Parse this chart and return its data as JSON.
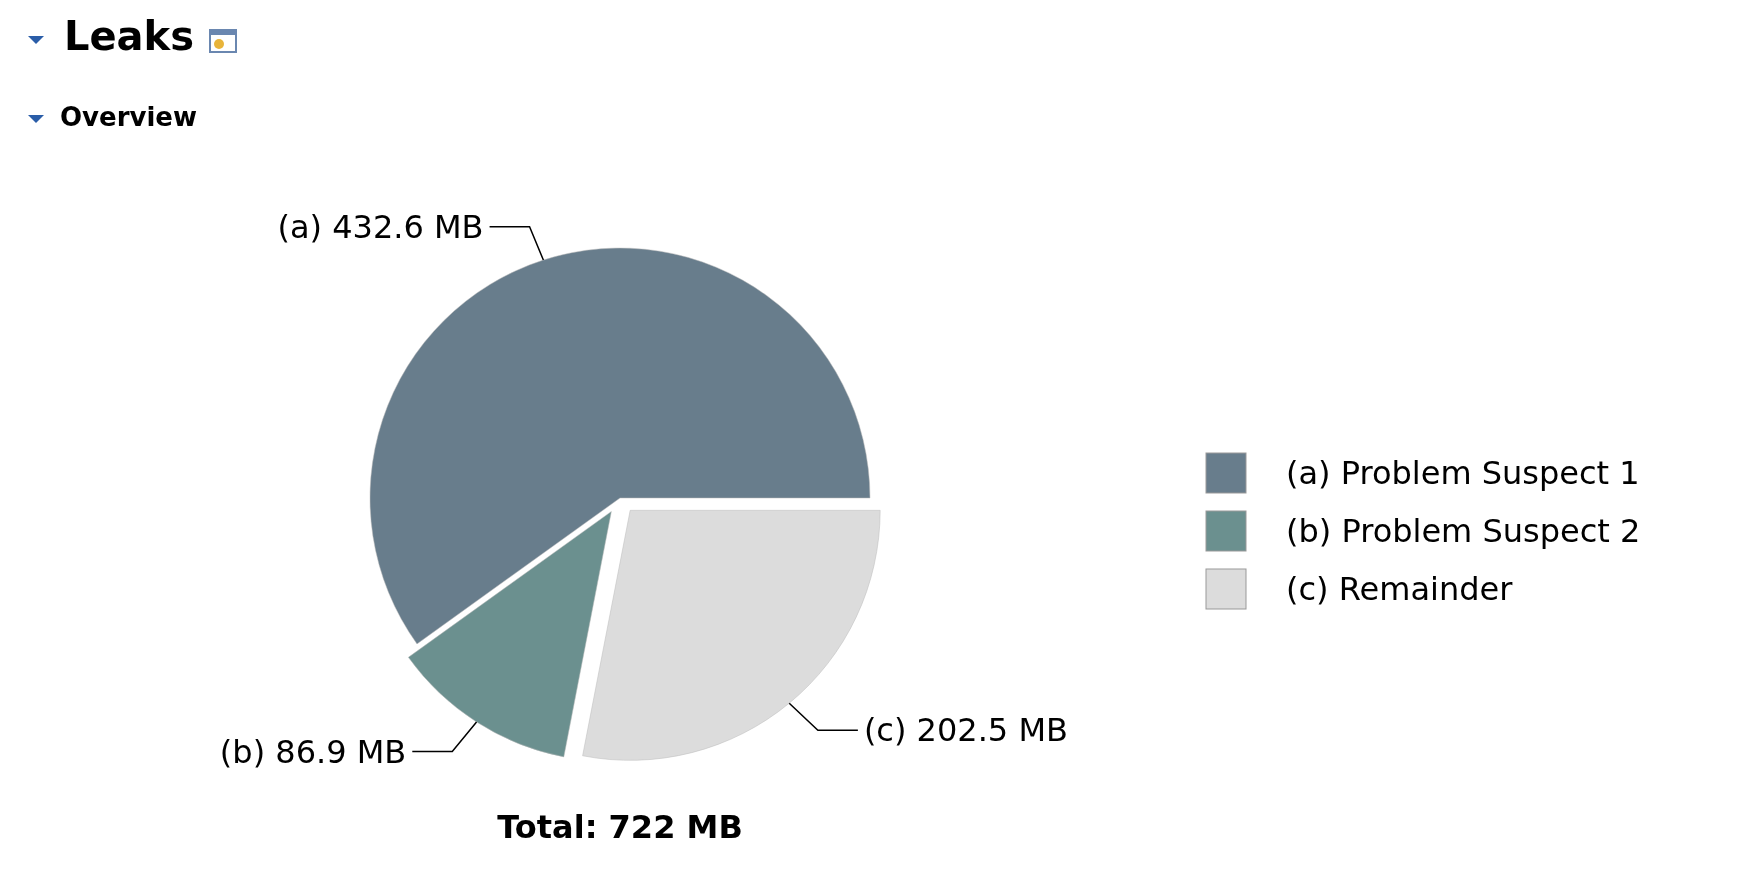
{
  "chart_data": {
    "type": "pie",
    "title": "Leaks",
    "subtitle": "Overview",
    "categories": [
      "(a)  Problem Suspect 1",
      "(b)  Problem Suspect 2",
      "(c)  Remainder"
    ],
    "values": [
      432.6,
      86.9,
      202.5
    ],
    "value_labels": [
      "(a)  432.6 MB",
      "(b)  86.9 MB",
      "(c)  202.5 MB"
    ],
    "colors": [
      "#687d8c",
      "#6b908f",
      "#dcdcdc"
    ],
    "annotations": [
      "Total: 722 MB"
    ],
    "legend": "right"
  }
}
